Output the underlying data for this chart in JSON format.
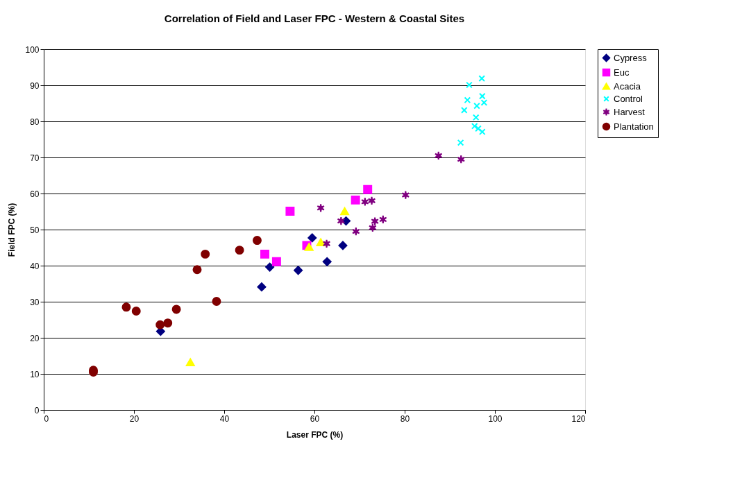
{
  "chart_data": {
    "type": "scatter",
    "title": "Correlation of Field and Laser FPC - Western & Coastal Sites",
    "xlabel": "Laser FPC (%)",
    "ylabel": "Field FPC (%)",
    "xlim": [
      0,
      120
    ],
    "xticks": [
      0,
      20,
      40,
      60,
      80,
      100,
      120
    ],
    "ylim": [
      0,
      100
    ],
    "yticks": [
      0,
      10,
      20,
      30,
      40,
      50,
      60,
      70,
      80,
      90,
      100
    ],
    "grid": "y",
    "legend": "right",
    "series": [
      {
        "name": "Cypress",
        "color": "#000080",
        "marker": "diamond",
        "x": [
          25.9,
          48.3,
          50.1,
          56.4,
          59.5,
          62.8,
          66.3,
          67.0
        ],
        "values": [
          21.8,
          34.1,
          39.6,
          38.7,
          47.7,
          41.1,
          45.6,
          52.4
        ]
      },
      {
        "name": "Euc",
        "color": "#ff00ff",
        "marker": "square",
        "x": [
          54.6,
          49.0,
          51.6,
          58.3,
          69.1,
          71.8
        ],
        "values": [
          55.1,
          43.2,
          41.1,
          45.6,
          58.2,
          61.1
        ]
      },
      {
        "name": "Acacia",
        "color": "#ffff00",
        "marker": "triangle",
        "x": [
          32.5,
          58.8,
          61.4,
          66.7
        ],
        "values": [
          13.2,
          45.2,
          46.5,
          55.1
        ]
      },
      {
        "name": "Control",
        "color": "#00ffff",
        "marker": "cross",
        "x": [
          92.4,
          93.2,
          93.9,
          94.3,
          97.1,
          96.0,
          97.2,
          97.6,
          95.8,
          95.5,
          96.3,
          97.2
        ],
        "values": [
          74.1,
          83.1,
          85.9,
          90.1,
          91.9,
          84.3,
          87.0,
          85.2,
          81.1,
          78.7,
          78.0,
          77.1
        ]
      },
      {
        "name": "Harvest",
        "color": "#800080",
        "x": [
          61.4,
          65.9,
          62.7,
          69.2,
          71.2,
          72.7,
          72.9,
          73.4,
          75.2,
          80.2,
          87.5,
          92.5
        ],
        "values": [
          56.0,
          52.4,
          46.1,
          49.5,
          57.7,
          58.0,
          50.5,
          52.3,
          52.8,
          59.6,
          70.5,
          69.5
        ]
      },
      {
        "name": "Plantation",
        "color": "#800000",
        "marker": "circle",
        "x": [
          11.0,
          11.0,
          18.3,
          20.5,
          25.8,
          27.5,
          29.4,
          34.0,
          35.8,
          38.3,
          43.4,
          47.3
        ],
        "values": [
          11.0,
          10.5,
          28.5,
          27.4,
          23.6,
          24.1,
          27.9,
          38.9,
          43.2,
          30.1,
          44.3,
          47.0
        ]
      }
    ]
  }
}
